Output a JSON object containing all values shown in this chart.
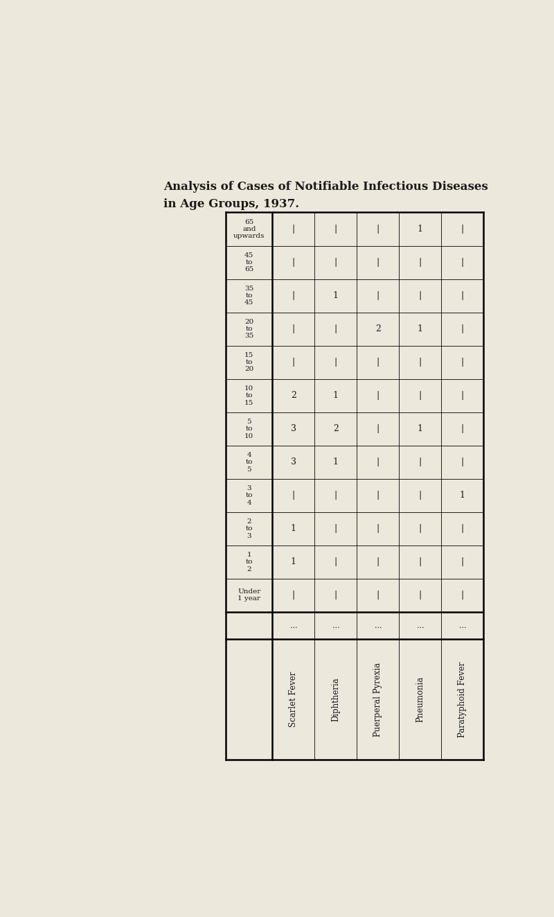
{
  "title_line1": "Analysis of Cases of Notifiable Infectious Diseases",
  "title_line2": "in Age Groups, 1937.",
  "background_color": "#ede8dc",
  "row_headers": [
    "65\nand\nupwards",
    "45\nto\n65",
    "35\nto\n45",
    "20\nto\n35",
    "15\nto\n20",
    "10\nto\n15",
    "5\nto\n10",
    "4\nto\n5",
    "3\nto\n4",
    "2\nto\n3",
    "1\nto\n2",
    "Under\n1 year"
  ],
  "diseases": [
    "Scarlet Fever",
    "Diphtheria",
    "Puerperal Pyrexia",
    "Pneumonia",
    "Paratyphoid Fever"
  ],
  "dots": [
    "...",
    "...",
    "...",
    "...",
    "..."
  ],
  "data": [
    [
      "-",
      "-",
      "-",
      "1",
      "-"
    ],
    [
      "-",
      "-",
      "-",
      "-",
      "-"
    ],
    [
      "-",
      "1",
      "-",
      "-",
      "-"
    ],
    [
      "-",
      "-",
      "2",
      "1",
      "-"
    ],
    [
      "-",
      "-",
      "-",
      "-",
      "-"
    ],
    [
      "2",
      "1",
      "-",
      "-",
      "-"
    ],
    [
      "3",
      "2",
      "-",
      "1",
      "-"
    ],
    [
      "3",
      "1",
      "-",
      "-",
      "-"
    ],
    [
      "-",
      "-",
      "-",
      "-",
      "1"
    ],
    [
      "1",
      "-",
      "-",
      "-",
      "-"
    ],
    [
      "1",
      "-",
      "-",
      "-",
      "-"
    ],
    [
      "-",
      "-",
      "-",
      "-",
      "-"
    ]
  ]
}
